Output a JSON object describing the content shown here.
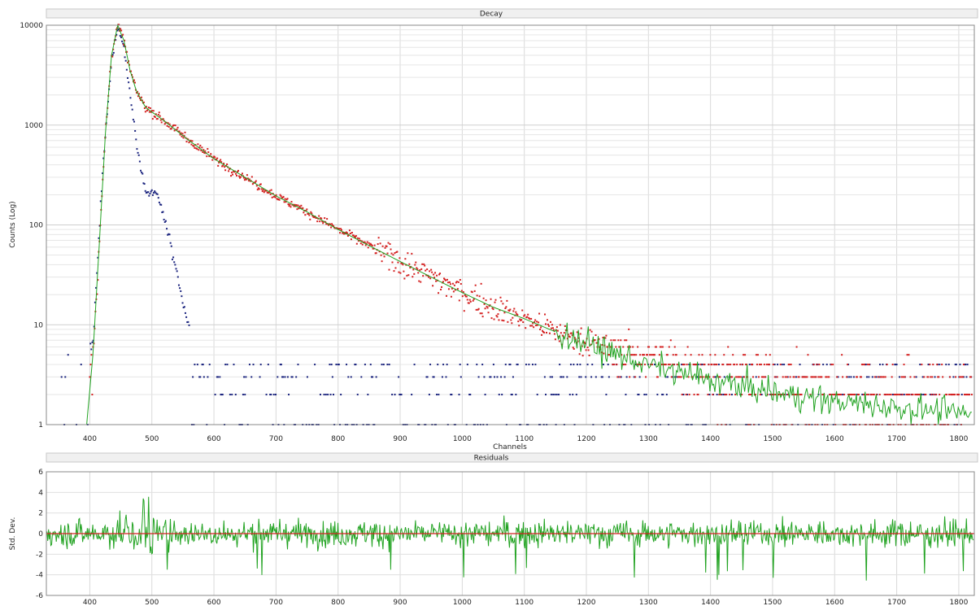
{
  "chart_data": [
    {
      "type": "scatter",
      "title": "Decay",
      "xlabel": "Channels",
      "ylabel": "Counts (Log)",
      "xlim": [
        330,
        1825
      ],
      "ylim": [
        1,
        10000
      ],
      "yscale": "log",
      "grid": true,
      "x_ticks": [
        400,
        500,
        600,
        700,
        800,
        900,
        1000,
        1100,
        1200,
        1300,
        1400,
        1500,
        1600,
        1700,
        1800
      ],
      "y_ticks": [
        1,
        10,
        100,
        1000,
        10000
      ],
      "x_tick_labels": [
        "400",
        "500",
        "600",
        "700",
        "800",
        "900",
        "1000",
        "1100",
        "1200",
        "1300",
        "1400",
        "1500",
        "1600",
        "1700",
        "1800"
      ],
      "y_tick_labels": [
        "1",
        "10",
        "100",
        "1000",
        "10000"
      ],
      "series": [
        {
          "color": "#d42020",
          "style": "markers",
          "x": [
            405,
            415,
            425,
            435,
            445,
            455,
            465,
            475,
            490,
            520,
            560,
            600,
            650,
            700,
            750,
            800,
            850,
            900,
            950,
            1000,
            1050,
            1100,
            1150,
            1200,
            1250,
            1300,
            1350,
            1400,
            1450,
            1500,
            1550,
            1600,
            1650,
            1700,
            1750,
            1800,
            1820
          ],
          "y": [
            5,
            60,
            800,
            5000,
            10000,
            7000,
            3500,
            2200,
            1500,
            1100,
            700,
            460,
            300,
            195,
            135,
            90,
            62,
            43,
            30,
            21,
            15,
            11.5,
            8.5,
            6.8,
            5.6,
            4.7,
            4.1,
            3.6,
            3.2,
            2.9,
            2.6,
            2.4,
            2.3,
            2.2,
            2.1,
            2.0,
            2.0
          ]
        },
        {
          "color": "#1a237e",
          "style": "markers",
          "x": [
            405,
            420,
            435,
            445,
            455,
            465,
            475,
            485,
            495,
            505,
            515,
            525,
            535,
            545,
            555,
            565,
            580,
            600,
            700,
            900,
            1100,
            1300,
            1500,
            1700,
            1820
          ],
          "y": [
            6,
            300,
            4500,
            10000,
            6000,
            2000,
            700,
            300,
            200,
            220,
            150,
            90,
            45,
            22,
            12,
            8,
            5,
            3.5,
            3,
            3,
            3,
            3,
            3,
            3,
            3
          ]
        },
        {
          "color": "#22a322",
          "style": "line",
          "x": [
            395,
            405,
            415,
            425,
            435,
            445,
            455,
            465,
            475,
            490,
            520,
            560,
            600,
            650,
            700,
            750,
            800,
            850,
            900,
            950,
            1000,
            1050,
            1100,
            1150,
            1200,
            1250,
            1300,
            1350,
            1400,
            1450,
            1500,
            1550,
            1600,
            1650,
            1700,
            1750,
            1800,
            1820
          ],
          "y": [
            1,
            5,
            60,
            800,
            5000,
            10000,
            7000,
            3500,
            2200,
            1500,
            1100,
            700,
            460,
            300,
            195,
            135,
            90,
            62,
            43,
            30,
            21,
            15,
            11.5,
            8.5,
            6.5,
            5.0,
            4.0,
            3.3,
            2.8,
            2.4,
            2.1,
            1.9,
            1.7,
            1.6,
            1.5,
            1.4,
            1.3,
            1.25
          ]
        }
      ]
    },
    {
      "type": "line",
      "title": "Residuals",
      "xlabel": "",
      "ylabel": "Std. Dev.",
      "xlim": [
        330,
        1825
      ],
      "ylim": [
        -6,
        6
      ],
      "grid": true,
      "x_ticks": [
        400,
        500,
        600,
        700,
        800,
        900,
        1000,
        1100,
        1200,
        1300,
        1400,
        1500,
        1600,
        1700,
        1800
      ],
      "y_ticks": [
        -6,
        -4,
        -2,
        0,
        2,
        4,
        6
      ],
      "x_tick_labels": [
        "400",
        "500",
        "600",
        "700",
        "800",
        "900",
        "1000",
        "1100",
        "1200",
        "1300",
        "1400",
        "1500",
        "1600",
        "1700",
        "1800"
      ],
      "y_tick_labels": [
        "-6",
        "-4",
        "-2",
        "0",
        "2",
        "4",
        "6"
      ],
      "zero_line_color": "#d42020",
      "series": [
        {
          "color": "#22a322",
          "style": "line",
          "x": [
            330,
            1825
          ],
          "y_range": [
            -4.8,
            3.6
          ]
        }
      ]
    }
  ]
}
